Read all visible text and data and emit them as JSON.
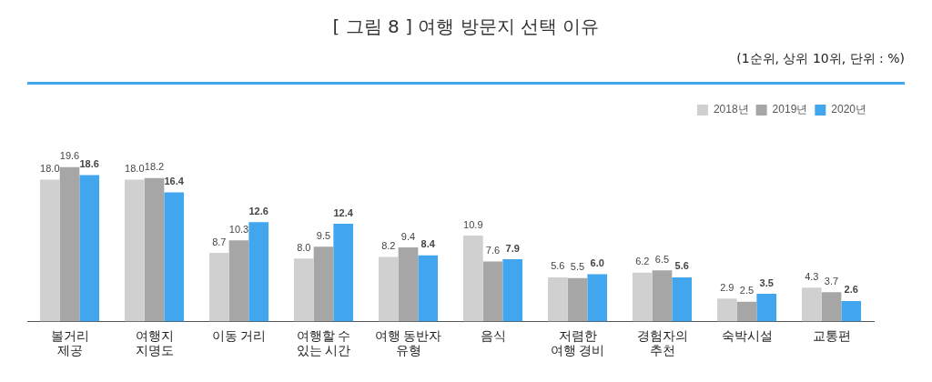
{
  "chart_data": {
    "type": "bar",
    "title": "[ 그림 8 ] 여행 방문지 선택 이유",
    "subtitle": "(1순위, 상위 10위, 단위 : %)",
    "categories": [
      "볼거리\n제공",
      "여행지\n지명도",
      "이동 거리",
      "여행할 수\n있는 시간",
      "여행 동반자\n유형",
      "음식",
      "저렴한\n여행 경비",
      "경험자의\n추천",
      "숙박시설",
      "교통편"
    ],
    "series": [
      {
        "name": "2018년",
        "color": "#d0d0d0",
        "values": [
          18.0,
          18.0,
          8.7,
          8.0,
          8.2,
          10.9,
          5.6,
          6.2,
          2.9,
          4.3
        ],
        "value_labels": [
          "18.0",
          "18.0",
          "8.7",
          "8.0",
          "8.2",
          "10.9",
          "5.6",
          "6.2",
          "2.9",
          "4.3"
        ]
      },
      {
        "name": "2019년",
        "color": "#a6a6a6",
        "values": [
          19.6,
          18.2,
          10.3,
          9.5,
          9.4,
          7.6,
          5.5,
          6.5,
          2.5,
          3.7
        ],
        "value_labels": [
          "19.6",
          "18.2",
          "10.3",
          "9.5",
          "9.4",
          "7.6",
          "5.5",
          "6.5",
          "2.5",
          "3.7"
        ]
      },
      {
        "name": "2020년",
        "color": "#41a6ee",
        "values": [
          18.6,
          16.4,
          12.6,
          12.4,
          8.4,
          7.9,
          6.0,
          5.6,
          3.5,
          2.6
        ],
        "value_labels": [
          "18.6",
          "16.4",
          "12.6",
          "12.4",
          "8.4",
          "7.9",
          "6.0",
          "5.6",
          "3.5",
          "2.6"
        ]
      }
    ],
    "legend": "top right",
    "grid": false
  }
}
